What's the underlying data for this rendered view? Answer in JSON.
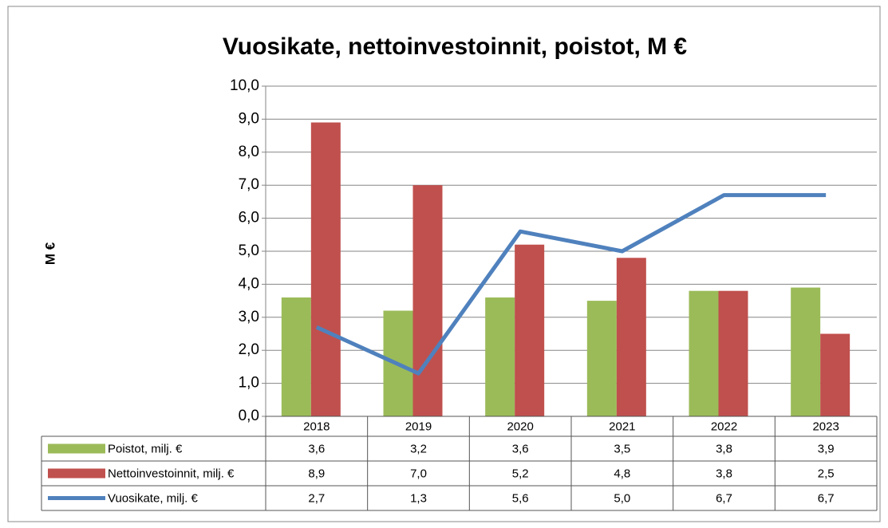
{
  "chart_data": {
    "type": "bar",
    "title": "Vuosikate, nettoinvestoinnit, poistot, M €",
    "y_label": "M €",
    "categories": [
      "2018",
      "2019",
      "2020",
      "2021",
      "2022",
      "2023"
    ],
    "series": [
      {
        "name": "Poistot, milj. €",
        "color": "#9bbb59",
        "type": "bar",
        "values": [
          3.6,
          3.2,
          3.6,
          3.5,
          3.8,
          3.9
        ],
        "value_labels": [
          "3,6",
          "3,2",
          "3,6",
          "3,5",
          "3,8",
          "3,9"
        ]
      },
      {
        "name": "Nettoinvestoinnit, milj. €",
        "color": "#c0504d",
        "type": "bar",
        "values": [
          8.9,
          7.0,
          5.2,
          4.8,
          3.8,
          2.5
        ],
        "value_labels": [
          "8,9",
          "7,0",
          "5,2",
          "4,8",
          "3,8",
          "2,5"
        ]
      },
      {
        "name": "Vuosikate, milj. €",
        "color": "#4f81bd",
        "type": "line",
        "values": [
          2.7,
          1.3,
          5.6,
          5.0,
          6.7,
          6.7
        ],
        "value_labels": [
          "2,7",
          "1,3",
          "5,6",
          "5,0",
          "6,7",
          "6,7"
        ]
      }
    ],
    "ylim": [
      0,
      10
    ],
    "yticks": [
      {
        "value": 0,
        "label": "0,0"
      },
      {
        "value": 1,
        "label": "1,0"
      },
      {
        "value": 2,
        "label": "2,0"
      },
      {
        "value": 3,
        "label": "3,0"
      },
      {
        "value": 4,
        "label": "4,0"
      },
      {
        "value": 5,
        "label": "5,0"
      },
      {
        "value": 6,
        "label": "6,0"
      },
      {
        "value": 7,
        "label": "7,0"
      },
      {
        "value": 8,
        "label": "8,0"
      },
      {
        "value": 9,
        "label": "9,0"
      },
      {
        "value": 10,
        "label": "10,0"
      }
    ],
    "grid": true
  }
}
